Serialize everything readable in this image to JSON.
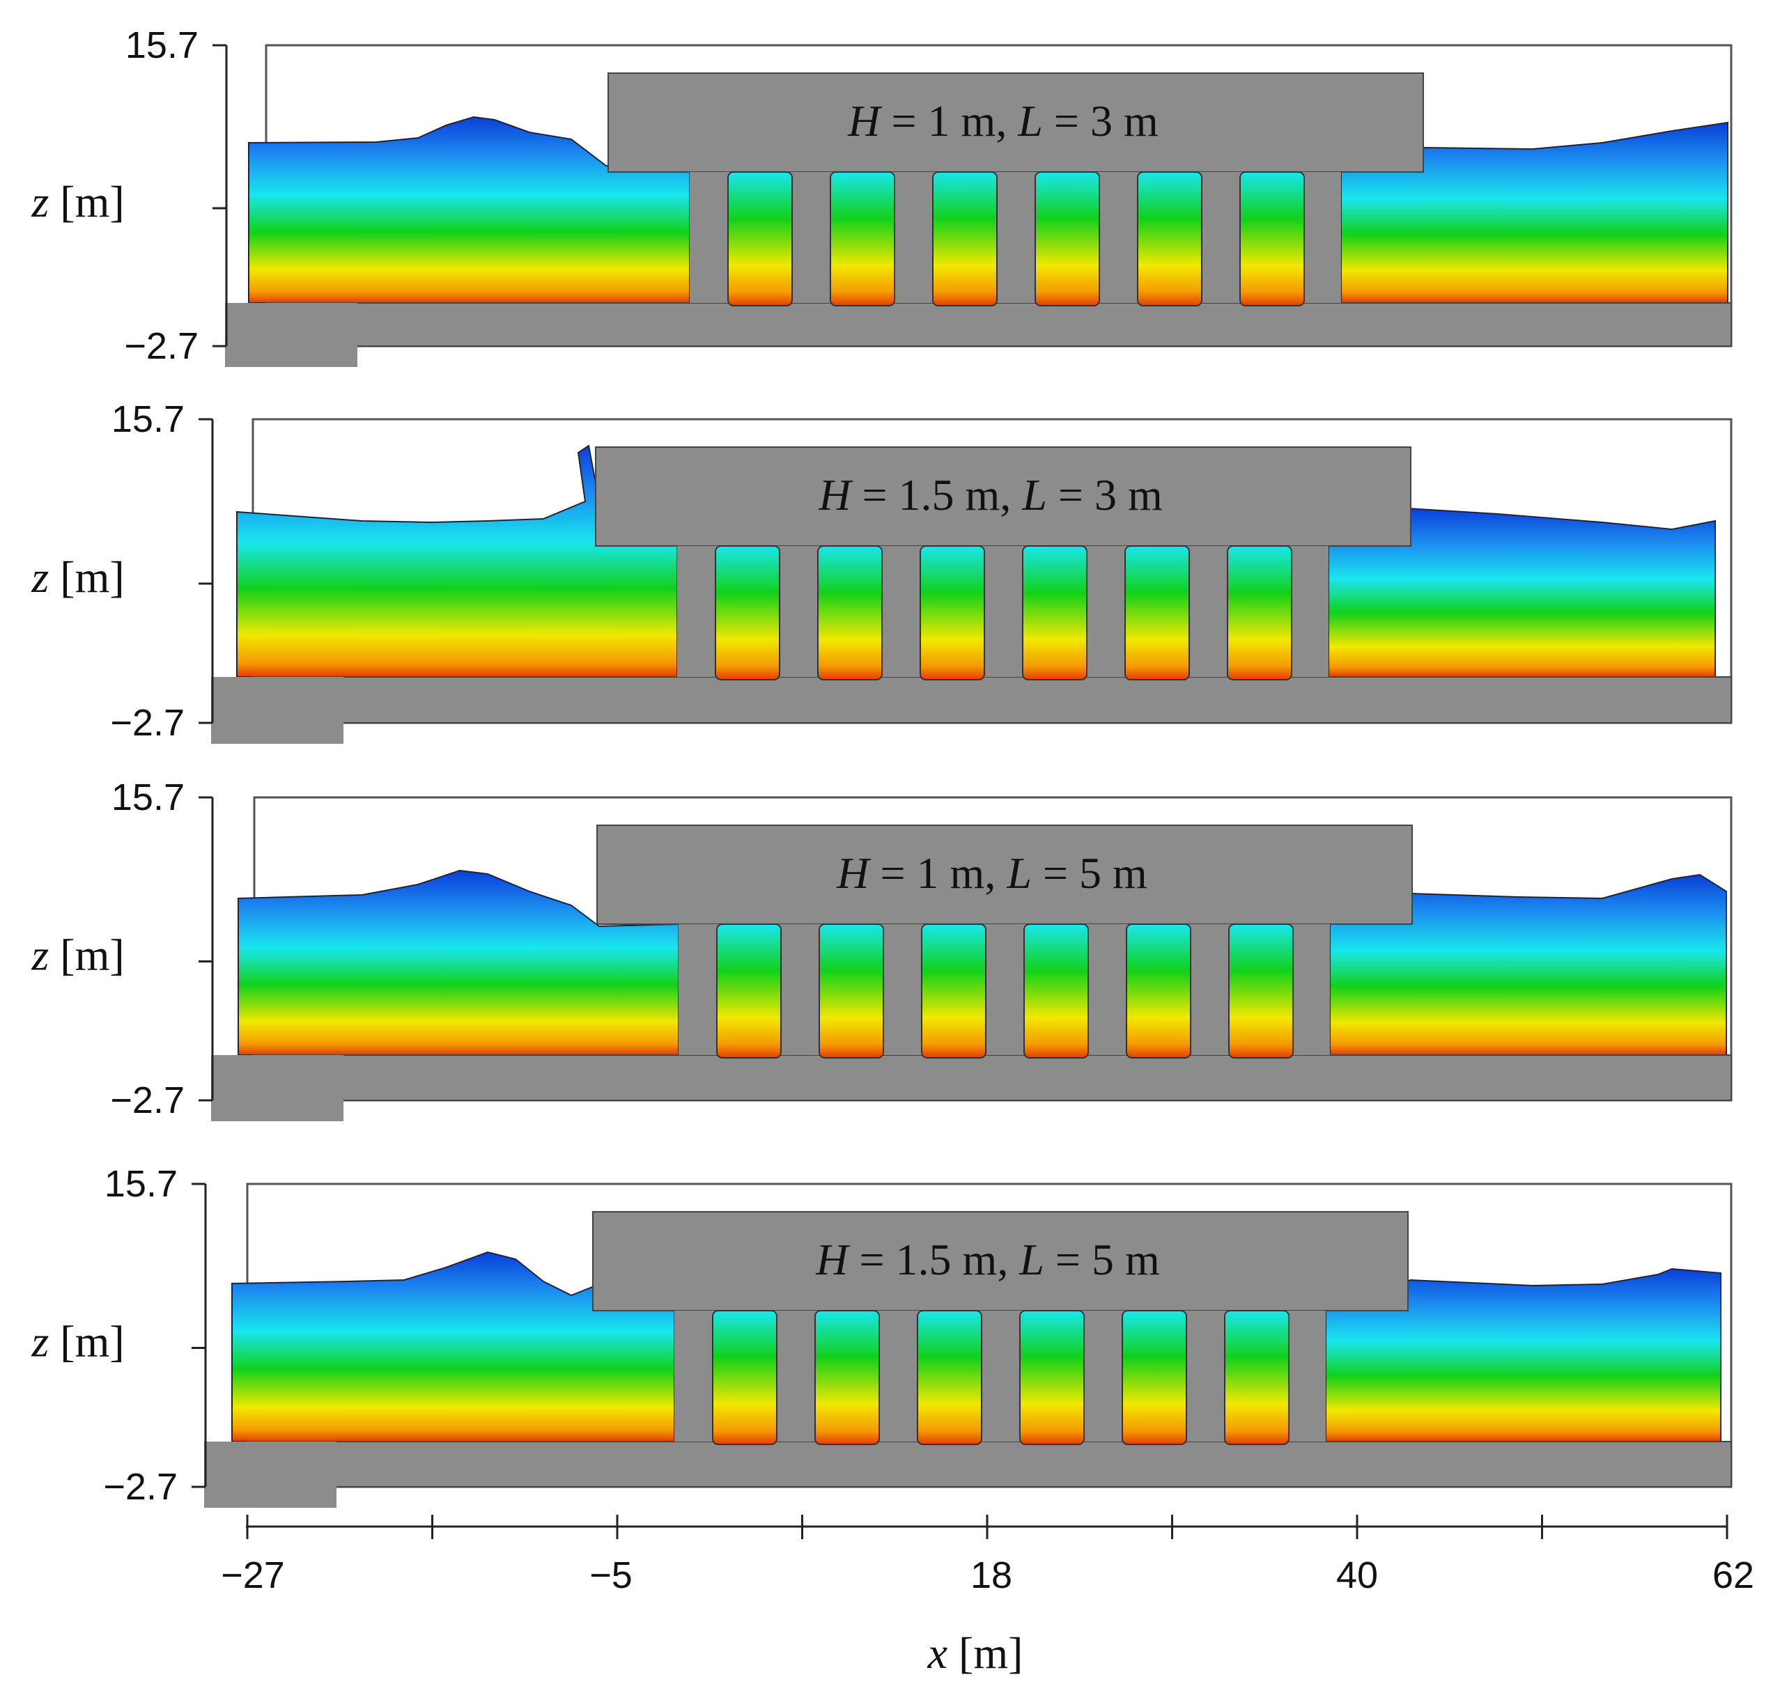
{
  "figure": {
    "x_axis": {
      "label_var": "x",
      "label_unit": "[m]",
      "tick_labels": [
        "−27",
        "−5",
        "18",
        "40",
        "62"
      ]
    },
    "z_axis": {
      "label_var": "z",
      "label_unit": "[m]",
      "top_label": "15.7",
      "bottom_label": "−2.7"
    },
    "panels": [
      {
        "H_label": "H",
        "H_value": " = 1 m, ",
        "L_label": "L",
        "L_value": " = 3 m",
        "H_m": 1,
        "L_m": 3
      },
      {
        "H_label": "H",
        "H_value": " = 1.5 m, ",
        "L_label": "L",
        "L_value": " = 3 m",
        "H_m": 1.5,
        "L_m": 3
      },
      {
        "H_label": "H",
        "H_value": " = 1 m, ",
        "L_label": "L",
        "L_value": " = 5 m",
        "H_m": 1,
        "L_m": 5
      },
      {
        "H_label": "H",
        "H_value": " = 1.5 m, ",
        "L_label": "L",
        "L_value": " = 5 m",
        "H_m": 1.5,
        "L_m": 5
      }
    ],
    "colors": {
      "structure": "#8c8c8c",
      "water_top": "#0a3fd8",
      "water_cyan": "#19e6ee",
      "water_green": "#12d11a",
      "water_yellow": "#f2e800",
      "water_orange": "#f49a00",
      "water_bottom": "#e63c00"
    }
  }
}
